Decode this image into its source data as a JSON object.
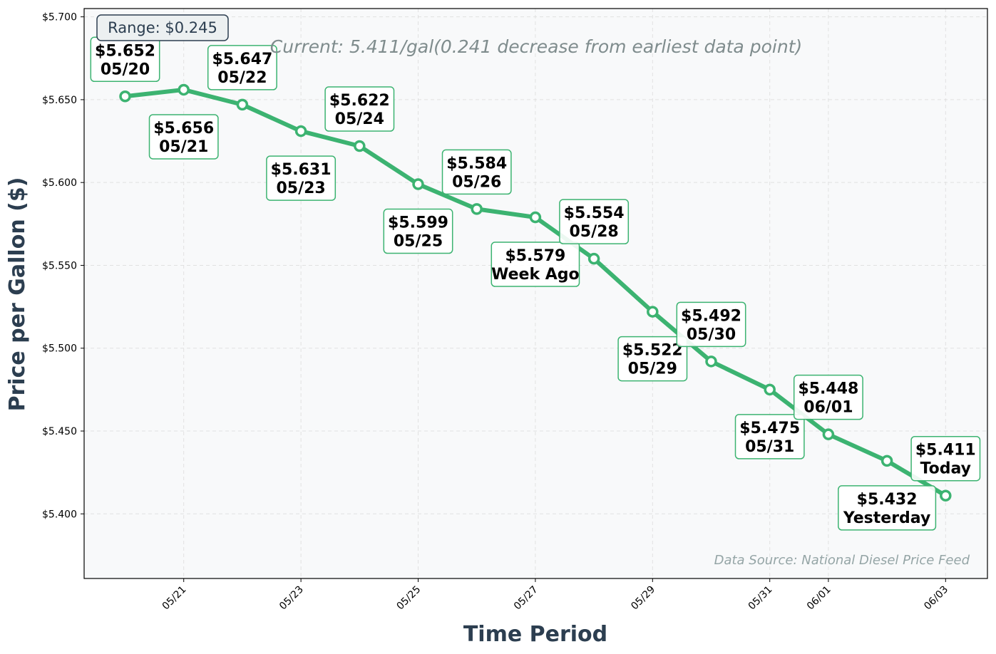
{
  "chart_data": {
    "type": "line",
    "title": "",
    "xlabel": "Time Period",
    "ylabel": "Price per Gallon ($)",
    "ylim": [
      5.361,
      5.705
    ],
    "x_dates": [
      "05/20",
      "05/21",
      "05/22",
      "05/23",
      "05/24",
      "05/25",
      "05/26",
      "05/27",
      "05/28",
      "05/29",
      "05/30",
      "05/31",
      "06/01",
      "06/02",
      "06/03"
    ],
    "x_tick_labels": [
      "05/21",
      "05/23",
      "05/25",
      "05/27",
      "05/29",
      "05/31",
      "06/01",
      "06/03"
    ],
    "y_ticks": [
      5.4,
      5.45,
      5.5,
      5.55,
      5.6,
      5.65,
      5.7
    ],
    "y_tick_labels": [
      "$5.400",
      "$5.450",
      "$5.500",
      "$5.550",
      "$5.600",
      "$5.650",
      "$5.700"
    ],
    "grid": true,
    "series": [
      {
        "values": [
          5.652,
          5.656,
          5.647,
          5.631,
          5.622,
          5.599,
          5.584,
          5.579,
          5.554,
          5.522,
          5.492,
          5.475,
          5.448,
          5.432,
          5.411
        ],
        "color": "#3cb371"
      }
    ],
    "point_labels": [
      {
        "price": "$5.652",
        "tag": "05/20",
        "pos": "above"
      },
      {
        "price": "$5.656",
        "tag": "05/21",
        "pos": "below"
      },
      {
        "price": "$5.647",
        "tag": "05/22",
        "pos": "above"
      },
      {
        "price": "$5.631",
        "tag": "05/23",
        "pos": "below"
      },
      {
        "price": "$5.622",
        "tag": "05/24",
        "pos": "above"
      },
      {
        "price": "$5.599",
        "tag": "05/25",
        "pos": "below"
      },
      {
        "price": "$5.584",
        "tag": "05/26",
        "pos": "above"
      },
      {
        "price": "$5.579",
        "tag": "Week Ago",
        "pos": "below"
      },
      {
        "price": "$5.554",
        "tag": "05/28",
        "pos": "above"
      },
      {
        "price": "$5.522",
        "tag": "05/29",
        "pos": "below"
      },
      {
        "price": "$5.492",
        "tag": "05/30",
        "pos": "above"
      },
      {
        "price": "$5.475",
        "tag": "05/31",
        "pos": "below"
      },
      {
        "price": "$5.448",
        "tag": "06/01",
        "pos": "above"
      },
      {
        "price": "$5.432",
        "tag": "Yesterday",
        "pos": "below"
      },
      {
        "price": "$5.411",
        "tag": "Today",
        "pos": "above"
      }
    ],
    "annotations": {
      "range": "Range: $0.245",
      "current": "Current: 5.411/gal(0.241 decrease from earliest data point)",
      "source": "Data Source: National Diesel Price Feed"
    }
  }
}
